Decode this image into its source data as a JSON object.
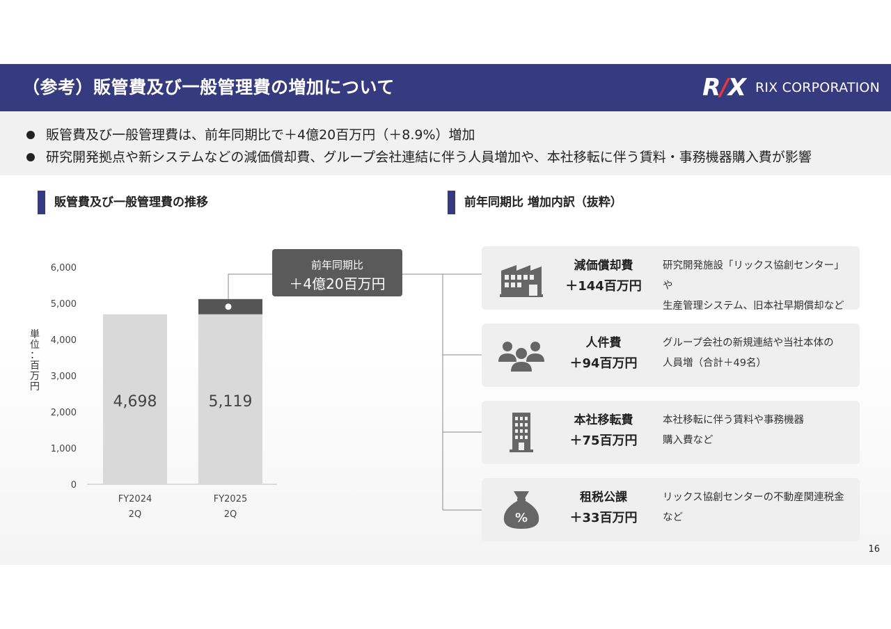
{
  "header": {
    "title": "（参考）販管費及び一般管理費の増加について",
    "logo_mark": "RIX",
    "logo_text": "RIX CORPORATION"
  },
  "bullets": [
    "販管費及び一般管理費は、前年同期比で＋4億20百万円（＋8.9%）増加",
    "研究開発拠点や新システムなどの減価償却費、グループ会社連結に伴う人員増加や、本社移転に伴う賃料・事務機器購入費が影響"
  ],
  "left_section": {
    "title": "販管費及び一般管理費の推移"
  },
  "right_section": {
    "title": "前年同期比 増加内訳（抜粋）"
  },
  "chart_data": {
    "type": "bar",
    "stacked": true,
    "categories": [
      "FY2024\n2Q",
      "FY2025\n2Q"
    ],
    "category_lines": [
      [
        "FY2024",
        "2Q"
      ],
      [
        "FY2025",
        "2Q"
      ]
    ],
    "series": [
      {
        "values": [
          4698,
          4698
        ],
        "color": "#d9d9d9"
      },
      {
        "values": [
          0,
          421
        ],
        "color": "#555555"
      }
    ],
    "data_labels": [
      "4,698",
      "5,119"
    ],
    "ylabel": "単位：百万円",
    "ylim": [
      0,
      6000
    ],
    "yticks": [
      0,
      1000,
      2000,
      3000,
      4000,
      5000,
      6000
    ],
    "ytick_labels": [
      "0",
      "1,000",
      "2,000",
      "3,000",
      "4,000",
      "5,000",
      "6,000"
    ],
    "grid": false,
    "legend": "none"
  },
  "callout": {
    "label": "前年同期比",
    "value": "＋4億20百万円"
  },
  "breakdown": [
    {
      "icon": "factory-icon",
      "title": "減価償却費",
      "amount": "＋144百万円",
      "lines": [
        "研究開発施設「リックス協創センター」や",
        "生産管理システム、旧本社早期償却など"
      ]
    },
    {
      "icon": "people-icon",
      "title": "人件費",
      "amount": "＋94百万円",
      "lines": [
        "グループ会社の新規連結や当社本体の",
        "人員増（合計＋49名）"
      ]
    },
    {
      "icon": "office-building-icon",
      "title": "本社移転費",
      "amount": "＋75百万円",
      "lines": [
        "本社移転に伴う賃料や事務機器",
        "購入費など"
      ]
    },
    {
      "icon": "tax-bag-icon",
      "title": "租税公課",
      "amount": "＋33百万円",
      "lines": [
        "リックス協創センターの不動産関連税金",
        "など"
      ]
    }
  ],
  "page_number": "16",
  "colors": {
    "header_bg": "#363a7e",
    "accent_red": "#e03a3a",
    "bar_base": "#d9d9d9",
    "bar_increase": "#555555"
  }
}
